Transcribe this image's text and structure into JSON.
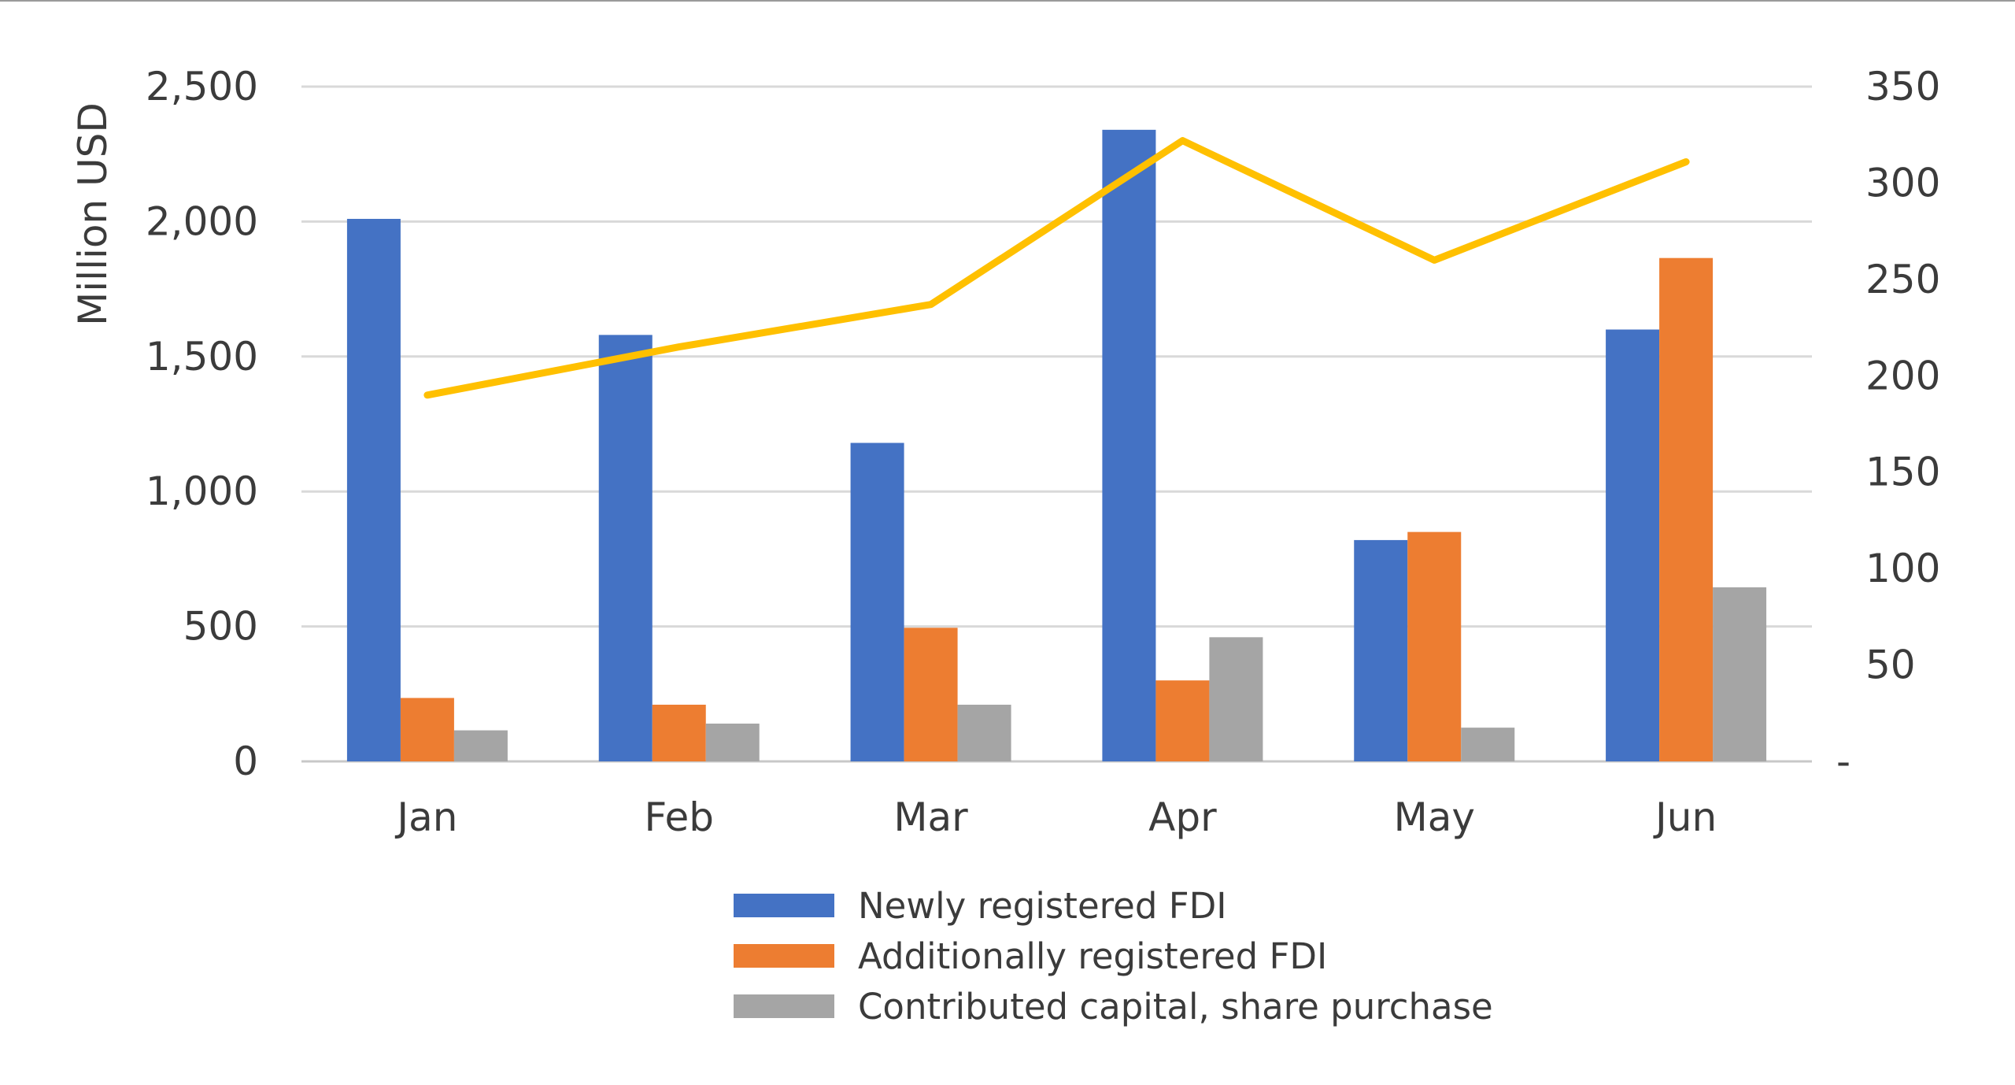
{
  "chart_data": {
    "type": "bar",
    "title": "",
    "xlabel": "",
    "ylabel": "Million USD",
    "ylabel_right": "",
    "categories": [
      "Jan",
      "Feb",
      "Mar",
      "Apr",
      "May",
      "Jun"
    ],
    "ylim": [
      0,
      2500
    ],
    "y_ticks": [
      "0",
      "500",
      "1,000",
      "1,500",
      "2,000",
      "2,500"
    ],
    "y2lim": [
      0,
      350
    ],
    "y2_ticks": [
      "-",
      "50",
      "100",
      "150",
      "200",
      "250",
      "300",
      "350"
    ],
    "grid": true,
    "legend_position": "bottom",
    "series": [
      {
        "name": "Newly registered FDI",
        "type": "bar",
        "axis": "left",
        "color": "#4472C4",
        "values": [
          2010,
          1580,
          1180,
          2340,
          820,
          1600
        ]
      },
      {
        "name": "Additionally registered FDI",
        "type": "bar",
        "axis": "left",
        "color": "#ED7D31",
        "values": [
          235,
          210,
          495,
          300,
          850,
          1865
        ]
      },
      {
        "name": "Contributed capital, share purchase",
        "type": "bar",
        "axis": "left",
        "color": "#A5A5A5",
        "values": [
          115,
          140,
          210,
          460,
          125,
          645
        ]
      },
      {
        "type": "line",
        "axis": "right",
        "color": "#FFC000",
        "values": [
          190,
          215,
          237,
          322,
          260,
          311
        ]
      }
    ]
  }
}
